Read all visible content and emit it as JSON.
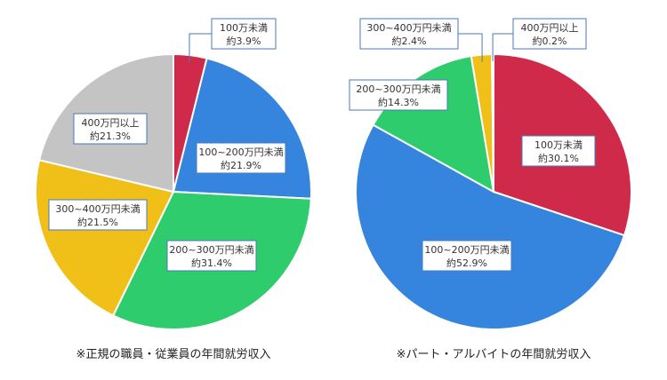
{
  "chart_data": [
    {
      "type": "pie",
      "caption": "※正規の職員・従業員の年間就労収入",
      "slices": [
        {
          "category": "100万未満",
          "value_label": "約3.9%",
          "value": 3.9,
          "color": "#d02a4b"
        },
        {
          "category": "100~200万円未満",
          "value_label": "約21.9%",
          "value": 21.9,
          "color": "#3584dd"
        },
        {
          "category": "200~300万円未満",
          "value_label": "約31.4%",
          "value": 31.4,
          "color": "#2fcc6d"
        },
        {
          "category": "300~400万円未満",
          "value_label": "約21.5%",
          "value": 21.5,
          "color": "#f0c019"
        },
        {
          "category": "400万円以上",
          "value_label": "約21.3%",
          "value": 21.3,
          "color": "#c4c4c4"
        }
      ]
    },
    {
      "type": "pie",
      "caption": "※パート・アルバイトの年間就労収入",
      "slices": [
        {
          "category": "100万未満",
          "value_label": "約30.1%",
          "value": 30.1,
          "color": "#d02a4b"
        },
        {
          "category": "100~200万円未満",
          "value_label": "約52.9%",
          "value": 52.9,
          "color": "#3584dd"
        },
        {
          "category": "200~300万円未満",
          "value_label": "約14.3%",
          "value": 14.3,
          "color": "#2fcc6d"
        },
        {
          "category": "300~400万円未満",
          "value_label": "約2.4%",
          "value": 2.4,
          "color": "#f0c019"
        },
        {
          "category": "400万円以上",
          "value_label": "約0.2%",
          "value": 0.2,
          "color": "#c4c4c4"
        }
      ]
    }
  ]
}
